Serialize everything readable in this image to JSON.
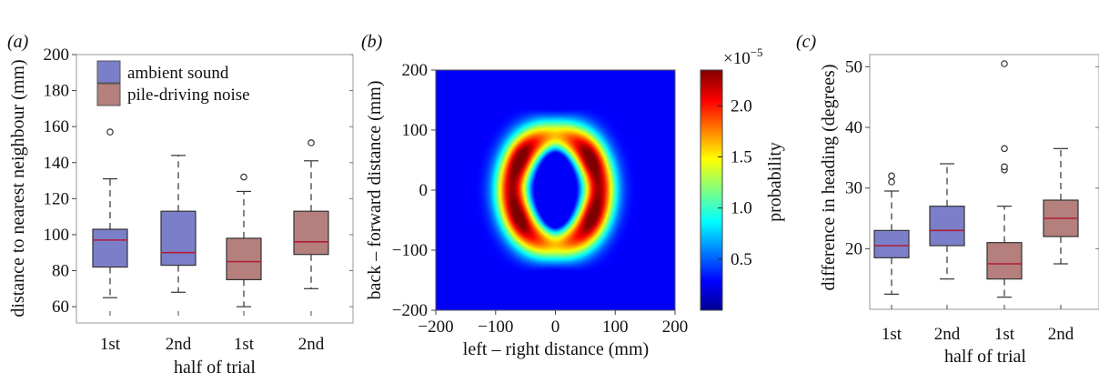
{
  "panels": {
    "a_label": "(a)",
    "b_label": "(b)",
    "c_label": "(c)"
  },
  "chart_data": [
    {
      "panel": "(a)",
      "type": "box",
      "xlabel": "half of trial",
      "ylabel": "distance to nearest neighbour (mm)",
      "categories": [
        "1st",
        "2nd",
        "1st",
        "2nd"
      ],
      "ylim": [
        55,
        200
      ],
      "yticks": [
        60,
        80,
        100,
        120,
        140,
        160,
        180,
        200
      ],
      "legend": {
        "placement": "top-left",
        "entries": [
          {
            "name": "ambient sound",
            "color": "#7b7fc9"
          },
          {
            "name": "pile-driving noise",
            "color": "#b47f7d"
          }
        ]
      },
      "boxes": [
        {
          "condition": "ambient sound",
          "color": "#7b7fc9",
          "whisker_low": 65,
          "q1": 82,
          "median": 97,
          "q3": 103,
          "whisker_high": 131,
          "outliers": [
            157
          ]
        },
        {
          "condition": "ambient sound",
          "color": "#7b7fc9",
          "whisker_low": 68,
          "q1": 83,
          "median": 90,
          "q3": 113,
          "whisker_high": 144,
          "outliers": []
        },
        {
          "condition": "pile-driving noise",
          "color": "#b47f7d",
          "whisker_low": 60,
          "q1": 75,
          "median": 85,
          "q3": 98,
          "whisker_high": 124,
          "outliers": [
            132
          ]
        },
        {
          "condition": "pile-driving noise",
          "color": "#b47f7d",
          "whisker_low": 70,
          "q1": 89,
          "median": 96,
          "q3": 113,
          "whisker_high": 141,
          "outliers": [
            151
          ]
        }
      ]
    },
    {
      "panel": "(b)",
      "type": "heatmap",
      "xlabel": "left – right distance (mm)",
      "ylabel": "back – forward distance (mm)",
      "xlim": [
        -200,
        200
      ],
      "ylim": [
        -200,
        200
      ],
      "xticks": [
        -200,
        -100,
        0,
        100,
        200
      ],
      "yticks": [
        -200,
        -100,
        0,
        100,
        200
      ],
      "colorbar": {
        "label": "probability",
        "multiplier": "×10",
        "exponent": "−5",
        "range": [
          0,
          2.35
        ],
        "ticks": [
          "0.5",
          "1.0",
          "1.5",
          "2.0"
        ],
        "tick_values": [
          0.5,
          1.0,
          1.5,
          2.0
        ]
      },
      "peaks": [
        {
          "x": -55,
          "y": 50,
          "value": 2.3
        },
        {
          "x": -55,
          "y": -40,
          "value": 2.3
        },
        {
          "x": 55,
          "y": 50,
          "value": 2.3
        },
        {
          "x": 55,
          "y": -40,
          "value": 2.3
        }
      ],
      "centre_value": 0.1,
      "background_value": 0.05
    },
    {
      "panel": "(c)",
      "type": "box",
      "xlabel": "half of trial",
      "ylabel": "difference in heading (degrees)",
      "categories": [
        "1st",
        "2nd",
        "1st",
        "2nd"
      ],
      "ylim": [
        10,
        52
      ],
      "yticks": [
        20,
        30,
        40,
        50
      ],
      "boxes": [
        {
          "condition": "ambient sound",
          "color": "#7b7fc9",
          "whisker_low": 12.5,
          "q1": 18.5,
          "median": 20.5,
          "q3": 23,
          "whisker_high": 29.5,
          "outliers": [
            31,
            32
          ]
        },
        {
          "condition": "ambient sound",
          "color": "#7b7fc9",
          "whisker_low": 15,
          "q1": 20.5,
          "median": 23,
          "q3": 27,
          "whisker_high": 34,
          "outliers": []
        },
        {
          "condition": "pile-driving noise",
          "color": "#b47f7d",
          "whisker_low": 12,
          "q1": 15,
          "median": 17.5,
          "q3": 21,
          "whisker_high": 27,
          "outliers": [
            33,
            33.5,
            36.5,
            50.5
          ]
        },
        {
          "condition": "pile-driving noise",
          "color": "#b47f7d",
          "whisker_low": 17.5,
          "q1": 22,
          "median": 25,
          "q3": 28,
          "whisker_high": 36.5,
          "outliers": []
        }
      ]
    }
  ]
}
